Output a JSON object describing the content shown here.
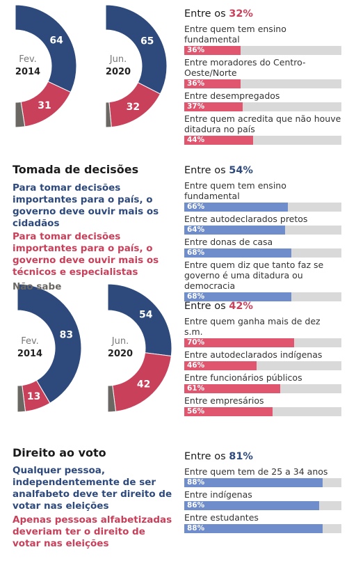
{
  "sections": [
    {
      "donuts": [
        {
          "period": "Fev.",
          "year": "2014",
          "values": [
            64,
            31,
            5
          ]
        },
        {
          "period": "Jun.",
          "year": "2020",
          "values": [
            65,
            32,
            3
          ]
        }
      ],
      "groups": [
        {
          "prefix": "Entre os",
          "highlight": "32%",
          "color": "#e0566f",
          "bars": [
            {
              "label": "Entre quem tem ensino fundamental",
              "value": 36,
              "value_label": "36%"
            },
            {
              "label": "Entre moradores do Centro-Oeste/Norte",
              "value": 36,
              "value_label": "36%"
            },
            {
              "label": "Entre desempregados",
              "value": 37,
              "value_label": "37%"
            },
            {
              "label": "Entre quem acredita que não houve ditadura no país",
              "value": 44,
              "value_label": "44%"
            }
          ]
        }
      ]
    },
    {
      "heading": "Tomada de decisões",
      "legend": [
        {
          "text": "Para tomar decisões importantes para o país, o governo deve ouvir mais os cidadãos",
          "color": "#2e4a7d"
        },
        {
          "text": "Para tomar decisões importantes para o país, o governo deve ouvir mais os técnicos e especialistas",
          "color": "#c9405a"
        },
        {
          "text": "Não sabe",
          "color": "#6b6763"
        }
      ],
      "donuts": [
        {
          "period": "Fev.",
          "year": "2014",
          "values": [
            83,
            13,
            4
          ]
        },
        {
          "period": "Jun.",
          "year": "2020",
          "values": [
            54,
            42,
            4
          ]
        }
      ],
      "groups": [
        {
          "prefix": "Entre os",
          "highlight": "54%",
          "color": "#6f8ccb",
          "bars": [
            {
              "label": "Entre quem tem ensino fundamental",
              "value": 66,
              "value_label": "66%"
            },
            {
              "label": "Entre autodeclarados pretos",
              "value": 64,
              "value_label": "64%"
            },
            {
              "label": "Entre donas de casa",
              "value": 68,
              "value_label": "68%"
            },
            {
              "label": "Entre quem diz que tanto faz se governo é uma ditadura ou democracia",
              "value": 68,
              "value_label": "68%"
            }
          ]
        },
        {
          "prefix": "Entre os",
          "highlight": "42%",
          "color": "#e0566f",
          "bars": [
            {
              "label": "Entre quem ganha mais de dez s.m.",
              "value": 70,
              "value_label": "70%"
            },
            {
              "label": "Entre autodeclarados indígenas",
              "value": 46,
              "value_label": "46%"
            },
            {
              "label": "Entre funcionários públicos",
              "value": 61,
              "value_label": "61%"
            },
            {
              "label": "Entre empresários",
              "value": 56,
              "value_label": "56%"
            }
          ]
        }
      ]
    },
    {
      "heading": "Direito ao voto",
      "legend": [
        {
          "text": "Qualquer pessoa, independentemente de ser analfabeto deve ter direito de votar nas eleições",
          "color": "#2e4a7d"
        },
        {
          "text": "Apenas pessoas alfabetizadas deveriam ter o direito de votar nas eleições",
          "color": "#c9405a"
        }
      ],
      "groups": [
        {
          "prefix": "Entre os",
          "highlight": "81%",
          "color": "#6f8ccb",
          "bars": [
            {
              "label": "Entre quem tem de 25 a 34 anos",
              "value": 88,
              "value_label": "88%"
            },
            {
              "label": "Entre indígenas",
              "value": 86,
              "value_label": "86%"
            },
            {
              "label": "Entre estudantes",
              "value": 88,
              "value_label": "88%"
            }
          ]
        }
      ]
    }
  ],
  "slice_colors": [
    "#2e4a7d",
    "#c9405a",
    "#6b6763"
  ],
  "bar_max": 100
}
